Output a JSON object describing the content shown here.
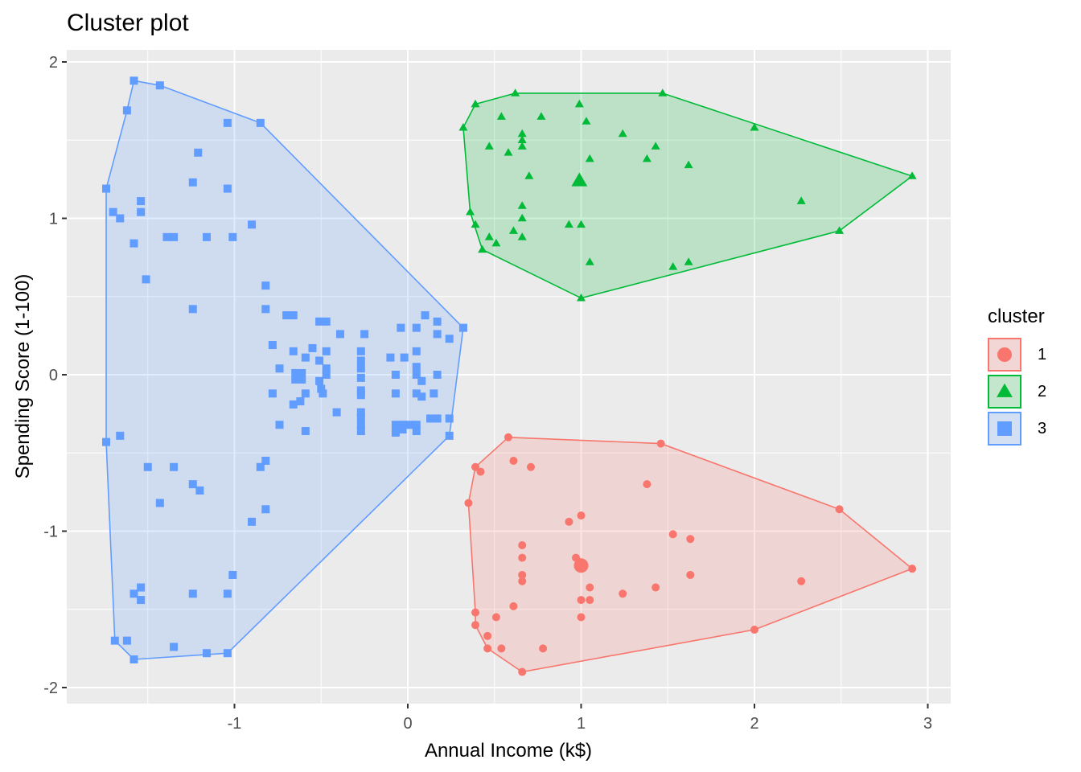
{
  "title": "Cluster plot",
  "legend": {
    "title": "cluster",
    "items": [
      {
        "label": "1",
        "color": "#F8766D",
        "fill": "#F2D6D5",
        "shape": "circle"
      },
      {
        "label": "2",
        "color": "#00BA38",
        "fill": "#C4E6CC",
        "shape": "triangle"
      },
      {
        "label": "3",
        "color": "#619CFF",
        "fill": "#D3DFF2",
        "shape": "square"
      }
    ]
  },
  "axes": {
    "xlabel": "Annual Income (k$)",
    "ylabel": "Spending Score (1-100)",
    "xticks": [
      "-1",
      "0",
      "1",
      "2",
      "3"
    ],
    "yticks": [
      "2",
      "1",
      "0",
      "-1",
      "-2"
    ]
  },
  "chart_data": {
    "type": "scatter",
    "title": "Cluster plot",
    "xlabel": "Annual Income (k$)",
    "ylabel": "Spending Score (1-100)",
    "xlim": [
      -1.98,
      3.12
    ],
    "ylim": [
      -2.08,
      2.08
    ],
    "xticks": [
      -1,
      0,
      1,
      2,
      3
    ],
    "yticks": [
      -2,
      -1,
      0,
      1,
      2
    ],
    "grid": true,
    "legend_position": "right",
    "legend_title": "cluster",
    "series": [
      {
        "name": "1",
        "color": "#F8766D",
        "shape": "circle",
        "centroid": [
          1.0,
          -1.22
        ],
        "hull": [
          [
            0.58,
            -0.4
          ],
          [
            1.46,
            -0.44
          ],
          [
            2.49,
            -0.86
          ],
          [
            2.91,
            -1.24
          ],
          [
            2.0,
            -1.63
          ],
          [
            0.66,
            -1.9
          ],
          [
            0.46,
            -1.75
          ],
          [
            0.39,
            -1.6
          ],
          [
            0.39,
            -1.52
          ],
          [
            0.35,
            -0.82
          ],
          [
            0.39,
            -0.59
          ]
        ],
        "points": [
          [
            0.58,
            -0.4
          ],
          [
            1.46,
            -0.44
          ],
          [
            2.49,
            -0.86
          ],
          [
            2.91,
            -1.24
          ],
          [
            2.0,
            -1.63
          ],
          [
            0.66,
            -1.9
          ],
          [
            0.46,
            -1.75
          ],
          [
            0.39,
            -1.6
          ],
          [
            0.39,
            -1.52
          ],
          [
            0.35,
            -0.82
          ],
          [
            0.39,
            -0.59
          ],
          [
            0.61,
            -0.55
          ],
          [
            0.71,
            -0.59
          ],
          [
            0.42,
            -0.62
          ],
          [
            1.38,
            -0.7
          ],
          [
            1.0,
            -0.9
          ],
          [
            0.93,
            -0.94
          ],
          [
            1.53,
            -1.02
          ],
          [
            1.63,
            -1.05
          ],
          [
            0.66,
            -1.09
          ],
          [
            0.66,
            -1.17
          ],
          [
            0.97,
            -1.17
          ],
          [
            0.66,
            -1.28
          ],
          [
            0.66,
            -1.32
          ],
          [
            1.63,
            -1.28
          ],
          [
            2.27,
            -1.32
          ],
          [
            1.05,
            -1.36
          ],
          [
            1.43,
            -1.36
          ],
          [
            1.24,
            -1.4
          ],
          [
            1.0,
            -1.44
          ],
          [
            1.05,
            -1.44
          ],
          [
            0.61,
            -1.48
          ],
          [
            0.51,
            -1.55
          ],
          [
            1.0,
            -1.55
          ],
          [
            0.46,
            -1.67
          ],
          [
            0.54,
            -1.75
          ],
          [
            0.78,
            -1.75
          ]
        ]
      },
      {
        "name": "2",
        "color": "#00BA38",
        "shape": "triangle",
        "centroid": [
          0.99,
          1.24
        ],
        "hull": [
          [
            0.62,
            1.8
          ],
          [
            1.47,
            1.8
          ],
          [
            2.91,
            1.27
          ],
          [
            2.49,
            0.92
          ],
          [
            1.0,
            0.49
          ],
          [
            0.43,
            0.8
          ],
          [
            0.36,
            1.04
          ],
          [
            0.32,
            1.58
          ],
          [
            0.39,
            1.73
          ]
        ],
        "points": [
          [
            0.62,
            1.8
          ],
          [
            1.47,
            1.8
          ],
          [
            2.91,
            1.27
          ],
          [
            2.49,
            0.92
          ],
          [
            1.0,
            0.49
          ],
          [
            0.43,
            0.8
          ],
          [
            0.36,
            1.04
          ],
          [
            0.32,
            1.58
          ],
          [
            0.39,
            1.73
          ],
          [
            0.99,
            1.73
          ],
          [
            0.54,
            1.65
          ],
          [
            0.77,
            1.65
          ],
          [
            1.03,
            1.62
          ],
          [
            0.47,
            1.46
          ],
          [
            0.58,
            1.42
          ],
          [
            0.66,
            1.54
          ],
          [
            0.66,
            1.5
          ],
          [
            0.66,
            1.46
          ],
          [
            1.24,
            1.54
          ],
          [
            1.43,
            1.46
          ],
          [
            2.0,
            1.58
          ],
          [
            1.05,
            1.38
          ],
          [
            1.38,
            1.38
          ],
          [
            1.62,
            1.34
          ],
          [
            0.7,
            1.27
          ],
          [
            2.27,
            1.11
          ],
          [
            0.66,
            1.08
          ],
          [
            0.66,
            1.0
          ],
          [
            0.39,
            0.96
          ],
          [
            0.93,
            0.96
          ],
          [
            1.0,
            0.96
          ],
          [
            0.61,
            0.92
          ],
          [
            0.47,
            0.88
          ],
          [
            0.66,
            0.88
          ],
          [
            0.51,
            0.84
          ],
          [
            1.05,
            0.72
          ],
          [
            1.53,
            0.69
          ],
          [
            1.62,
            0.72
          ]
        ]
      },
      {
        "name": "3",
        "color": "#619CFF",
        "shape": "square",
        "centroid": [
          -0.63,
          -0.01
        ],
        "hull": [
          [
            -1.58,
            1.88
          ],
          [
            -1.43,
            1.85
          ],
          [
            -0.85,
            1.61
          ],
          [
            0.32,
            0.3
          ],
          [
            0.24,
            -0.39
          ],
          [
            -1.04,
            -1.78
          ],
          [
            -1.58,
            -1.82
          ],
          [
            -1.69,
            -1.7
          ],
          [
            -1.74,
            -0.43
          ],
          [
            -1.74,
            1.19
          ],
          [
            -1.62,
            1.69
          ]
        ],
        "points": [
          [
            -1.58,
            1.88
          ],
          [
            -1.43,
            1.85
          ],
          [
            -0.85,
            1.61
          ],
          [
            -1.62,
            1.69
          ],
          [
            -1.04,
            1.61
          ],
          [
            -1.21,
            1.42
          ],
          [
            -1.24,
            1.23
          ],
          [
            -1.04,
            1.19
          ],
          [
            -1.74,
            1.19
          ],
          [
            -1.54,
            1.11
          ],
          [
            -1.7,
            1.04
          ],
          [
            -1.54,
            1.04
          ],
          [
            -1.66,
            1.0
          ],
          [
            -0.9,
            0.96
          ],
          [
            -1.39,
            0.88
          ],
          [
            -1.35,
            0.88
          ],
          [
            -1.16,
            0.88
          ],
          [
            -1.01,
            0.88
          ],
          [
            -1.58,
            0.84
          ],
          [
            -1.51,
            0.61
          ],
          [
            -0.82,
            0.57
          ],
          [
            -1.24,
            0.42
          ],
          [
            -0.82,
            0.42
          ],
          [
            -0.7,
            0.38
          ],
          [
            -0.66,
            0.38
          ],
          [
            -0.51,
            0.34
          ],
          [
            -0.47,
            0.34
          ],
          [
            -0.78,
            0.19
          ],
          [
            -0.39,
            0.26
          ],
          [
            -0.25,
            0.26
          ],
          [
            0.1,
            0.38
          ],
          [
            0.17,
            0.34
          ],
          [
            0.32,
            0.3
          ],
          [
            -0.04,
            0.3
          ],
          [
            0.05,
            0.3
          ],
          [
            0.17,
            0.26
          ],
          [
            0.24,
            0.23
          ],
          [
            -0.66,
            0.15
          ],
          [
            -0.55,
            0.17
          ],
          [
            -0.47,
            0.15
          ],
          [
            -0.27,
            0.15
          ],
          [
            -0.27,
            0.09
          ],
          [
            -0.1,
            0.11
          ],
          [
            -0.02,
            0.11
          ],
          [
            0.05,
            0.15
          ],
          [
            -0.74,
            0.04
          ],
          [
            -0.59,
            0.11
          ],
          [
            -0.51,
            0.09
          ],
          [
            -0.47,
            0.04
          ],
          [
            -0.27,
            0.04
          ],
          [
            -0.27,
            -0.02
          ],
          [
            0.05,
            0.05
          ],
          [
            -0.63,
            -0.01
          ],
          [
            -0.51,
            -0.04
          ],
          [
            -0.47,
            0.0
          ],
          [
            -0.07,
            0.0
          ],
          [
            0.05,
            0.0
          ],
          [
            0.08,
            -0.04
          ],
          [
            0.17,
            0.0
          ],
          [
            -0.78,
            -0.12
          ],
          [
            -0.59,
            -0.12
          ],
          [
            -0.5,
            -0.09
          ],
          [
            -0.49,
            -0.12
          ],
          [
            -0.27,
            -0.1
          ],
          [
            -0.27,
            -0.13
          ],
          [
            -0.07,
            -0.12
          ],
          [
            0.05,
            -0.12
          ],
          [
            0.08,
            -0.14
          ],
          [
            0.15,
            -0.12
          ],
          [
            -0.66,
            -0.19
          ],
          [
            -0.62,
            -0.17
          ],
          [
            -0.41,
            -0.24
          ],
          [
            -0.27,
            -0.24
          ],
          [
            -0.27,
            -0.27
          ],
          [
            -0.74,
            -0.32
          ],
          [
            -0.59,
            -0.36
          ],
          [
            -0.27,
            -0.32
          ],
          [
            -0.27,
            -0.36
          ],
          [
            -0.07,
            -0.32
          ],
          [
            -0.03,
            -0.32
          ],
          [
            0.01,
            -0.32
          ],
          [
            0.05,
            -0.32
          ],
          [
            0.13,
            -0.28
          ],
          [
            0.17,
            -0.28
          ],
          [
            0.24,
            -0.28
          ],
          [
            -0.07,
            -0.37
          ],
          [
            -0.03,
            -0.35
          ],
          [
            0.05,
            -0.36
          ],
          [
            0.24,
            -0.39
          ],
          [
            -1.74,
            -0.43
          ],
          [
            -1.66,
            -0.39
          ],
          [
            -0.82,
            -0.55
          ],
          [
            -0.85,
            -0.59
          ],
          [
            -1.5,
            -0.59
          ],
          [
            -1.35,
            -0.59
          ],
          [
            -1.24,
            -0.7
          ],
          [
            -1.2,
            -0.74
          ],
          [
            -1.43,
            -0.82
          ],
          [
            -0.82,
            -0.86
          ],
          [
            -0.9,
            -0.94
          ],
          [
            -1.01,
            -1.28
          ],
          [
            -1.54,
            -1.36
          ],
          [
            -1.58,
            -1.4
          ],
          [
            -1.54,
            -1.44
          ],
          [
            -1.24,
            -1.4
          ],
          [
            -1.04,
            -1.4
          ],
          [
            -1.69,
            -1.7
          ],
          [
            -1.62,
            -1.7
          ],
          [
            -1.35,
            -1.74
          ],
          [
            -1.58,
            -1.82
          ],
          [
            -1.16,
            -1.78
          ],
          [
            -1.04,
            -1.78
          ]
        ]
      }
    ]
  }
}
